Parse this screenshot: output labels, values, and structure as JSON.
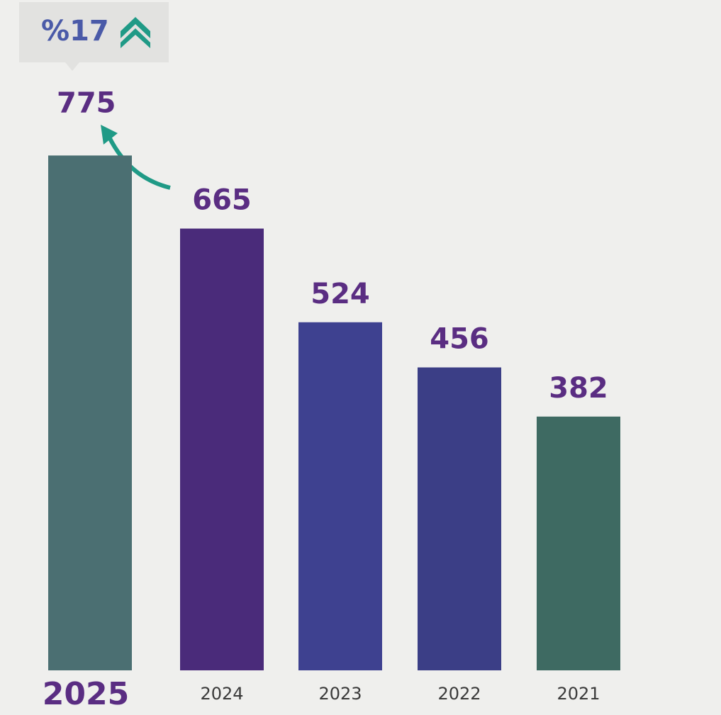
{
  "chart_data": {
    "type": "bar",
    "annotation": "%17",
    "categories": [
      "2025",
      "2024",
      "2023",
      "2022",
      "2021"
    ],
    "values": [
      775,
      665,
      524,
      456,
      382
    ],
    "colors": [
      "#4b6f72",
      "#4a2b7a",
      "#3e4190",
      "#3b3e86",
      "#3e6a62"
    ],
    "ylim": [
      0,
      800
    ]
  }
}
